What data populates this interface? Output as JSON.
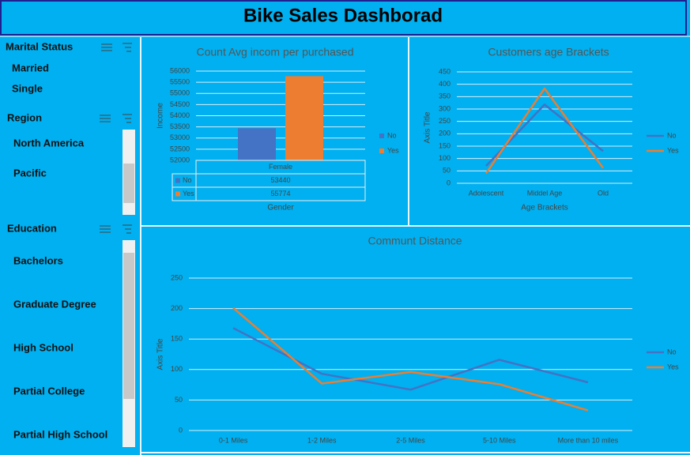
{
  "header": {
    "title": "Bike Sales Dashborad"
  },
  "slicers": [
    {
      "title": "Marital Status",
      "items": [
        "Married",
        "Single"
      ]
    },
    {
      "title": "Region",
      "items": [
        "North America",
        "Pacific"
      ]
    },
    {
      "title": "Education",
      "items": [
        "Bachelors",
        "Graduate Degree",
        "High School",
        "Partial College",
        "Partial High School"
      ]
    }
  ],
  "chart_data": [
    {
      "type": "bar",
      "title": "Count Avg incom per purchased",
      "x_label": "Gender",
      "y_label": "Income",
      "categories": [
        "Female"
      ],
      "series": [
        {
          "name": "No",
          "color": "#4472c4",
          "values": [
            53440
          ]
        },
        {
          "name": "Yes",
          "color": "#ed7d31",
          "values": [
            55774
          ]
        }
      ],
      "ylim": [
        52000,
        56000
      ],
      "yticks": [
        52000,
        52500,
        53000,
        53500,
        54000,
        54500,
        55000,
        55500,
        56000
      ],
      "grid": true,
      "legend": "right",
      "data_table": true
    },
    {
      "type": "line",
      "title": "Customers age Brackets",
      "x_label": "Age Brackets",
      "y_label": "Axis Title",
      "categories": [
        "Adolescent",
        "Middel Age",
        "Old"
      ],
      "series": [
        {
          "name": "No",
          "color": "#4472c4",
          "values": [
            70,
            318,
            130
          ]
        },
        {
          "name": "Yes",
          "color": "#ed7d31",
          "values": [
            40,
            383,
            62
          ]
        }
      ],
      "ylim": [
        0,
        450
      ],
      "yticks": [
        0,
        50,
        100,
        150,
        200,
        250,
        300,
        350,
        400,
        450
      ],
      "grid": true,
      "legend": "right"
    },
    {
      "type": "line",
      "title": "Communt Distance",
      "y_label": "Axis Title",
      "categories": [
        "0-1 Miles",
        "1-2 Miles",
        "2-5 Miles",
        "5-10 Miles",
        "More than 10 miles"
      ],
      "series": [
        {
          "name": "No",
          "color": "#4472c4",
          "values": [
            168,
            93,
            67,
            116,
            79
          ]
        },
        {
          "name": "Yes",
          "color": "#ed7d31",
          "values": [
            201,
            77,
            96,
            76,
            33
          ]
        }
      ],
      "ylim": [
        0,
        250
      ],
      "yticks": [
        0,
        50,
        100,
        150,
        200,
        250
      ],
      "grid": true,
      "legend": "right"
    }
  ]
}
